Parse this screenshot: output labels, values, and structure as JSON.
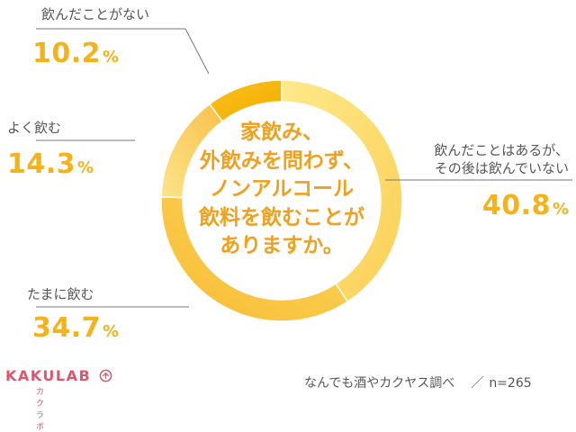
{
  "chart_data": {
    "type": "pie",
    "variant": "donut",
    "title": "",
    "center_text": [
      "家飲み、",
      "外飲みを問わず、",
      "ノンアルコール",
      "飲料を飲むことが",
      "ありますか。"
    ],
    "unit": "%",
    "slices": [
      {
        "label": "飲んだことはあるが、その後は飲んでいない",
        "label_lines": [
          "飲んだことはあるが、",
          "その後は飲んでいない"
        ],
        "value": 40.8,
        "value_text": "40.8",
        "color": "#fde068"
      },
      {
        "label": "たまに飲む",
        "label_lines": [
          "たまに飲む"
        ],
        "value": 34.7,
        "value_text": "34.7",
        "color": "#fcd558"
      },
      {
        "label": "よく飲む",
        "label_lines": [
          "よく飲む"
        ],
        "value": 14.3,
        "value_text": "14.3",
        "color": "#fde37a"
      },
      {
        "label": "飲んだことがない",
        "label_lines": [
          "飲んだことがない"
        ],
        "value": 10.2,
        "value_text": "10.2",
        "color": "#f7b500"
      }
    ],
    "legend": "none",
    "sample_size": "n=265"
  },
  "branding": {
    "logo_text": "KAKULAB",
    "logo_sub": "カクラボ",
    "source": "なんでも酒やカクヤス調べ",
    "separator": "／",
    "sample": "n=265"
  }
}
